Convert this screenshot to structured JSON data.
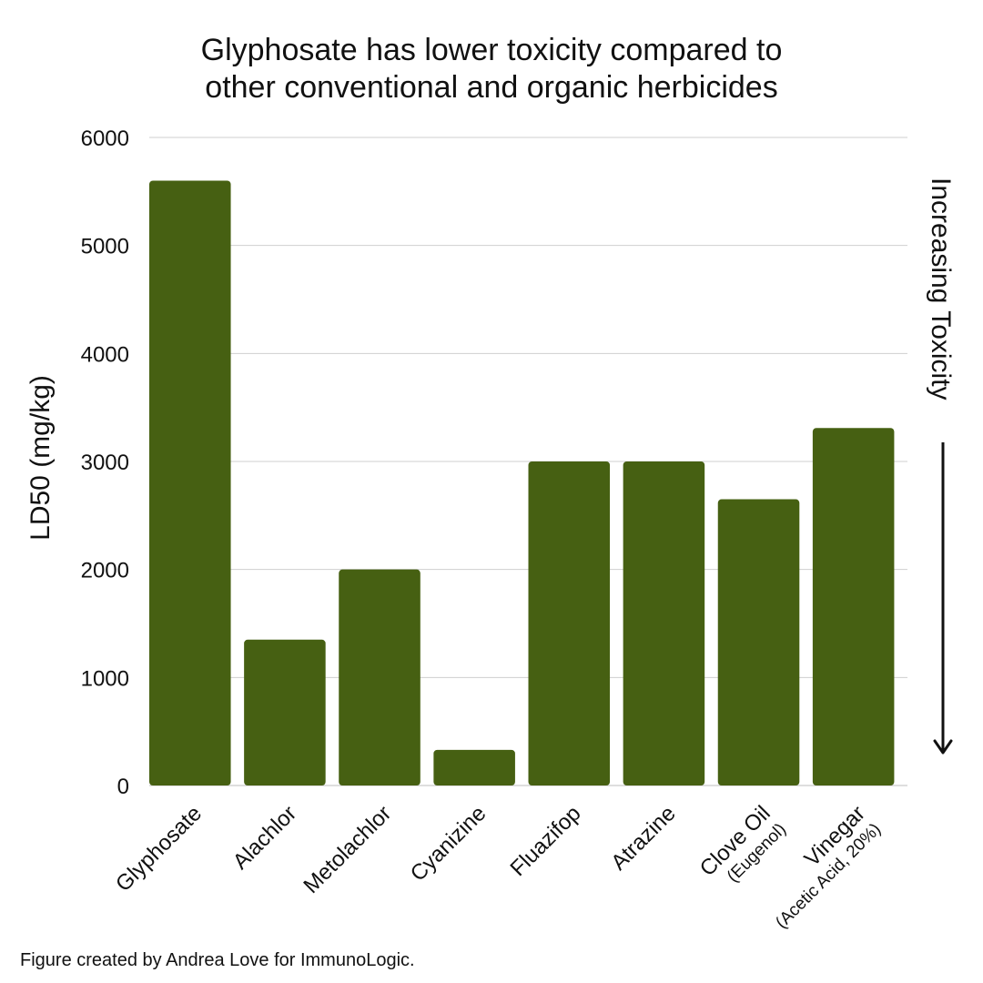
{
  "chart_data": {
    "type": "bar",
    "title": "Glyphosate has lower toxicity compared to other conventional and organic herbicides",
    "title_lines": [
      "Glyphosate has lower toxicity compared to",
      "other conventional and organic herbicides"
    ],
    "ylabel": "LD50 (mg/kg)",
    "xlabel": "",
    "ylim": [
      0,
      6000
    ],
    "yticks": [
      0,
      1000,
      2000,
      3000,
      4000,
      5000,
      6000
    ],
    "grid": true,
    "categories": [
      {
        "label": "Glyphosate",
        "sublabel": ""
      },
      {
        "label": "Alachlor",
        "sublabel": ""
      },
      {
        "label": "Metolachlor",
        "sublabel": ""
      },
      {
        "label": "Cyanizine",
        "sublabel": ""
      },
      {
        "label": "Fluazifop",
        "sublabel": ""
      },
      {
        "label": "Atrazine",
        "sublabel": ""
      },
      {
        "label": "Clove Oil",
        "sublabel": "(Eugenol)"
      },
      {
        "label": "Vinegar",
        "sublabel": "(Acetic Acid, 20%)"
      }
    ],
    "values": [
      5600,
      1350,
      2000,
      330,
      3000,
      3000,
      2650,
      3310
    ],
    "bar_color": "#466012",
    "annotation": "Increasing Toxicity",
    "annotation_arrow": "down"
  },
  "footer": {
    "credit": "Figure created by Andrea Love for ImmunoLogic."
  }
}
